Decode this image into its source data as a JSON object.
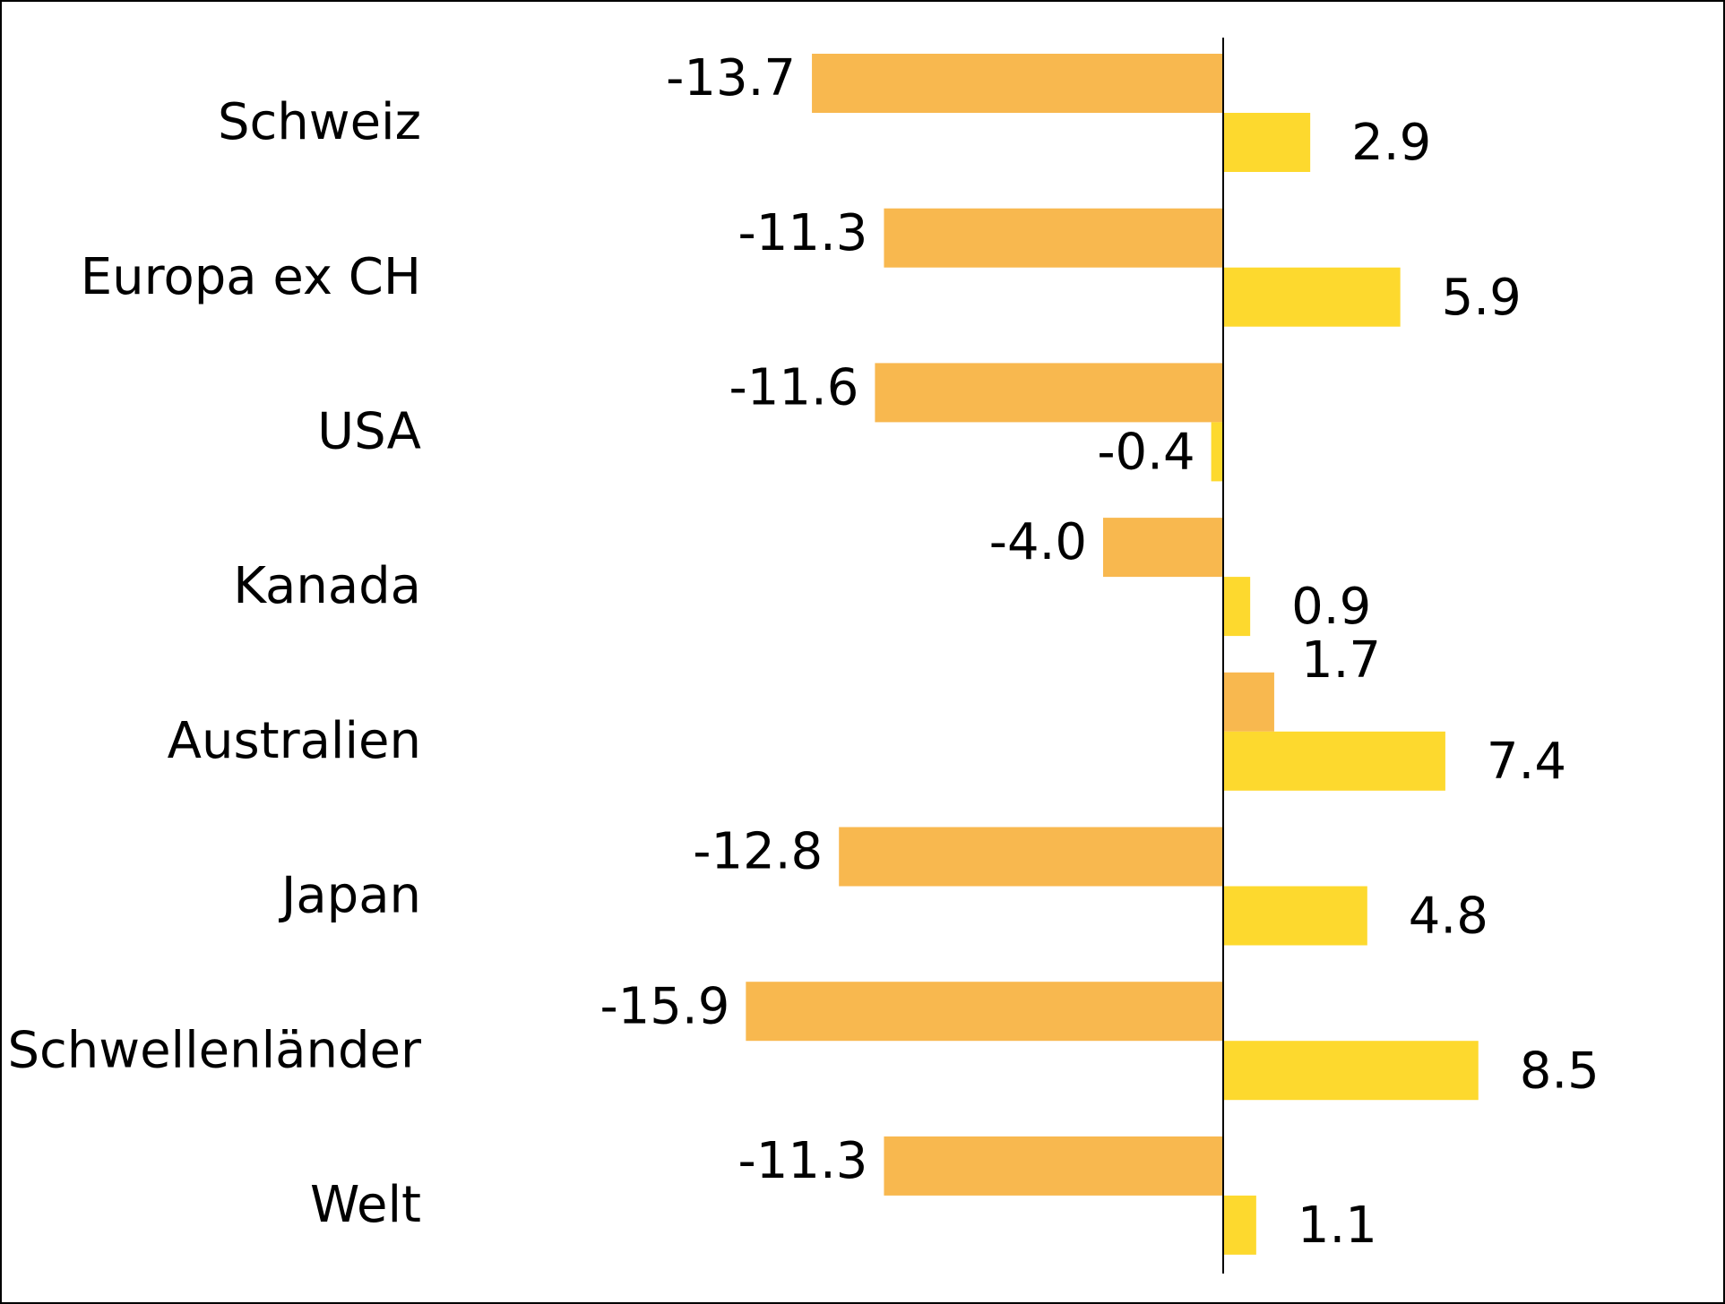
{
  "chart_data": {
    "type": "bar",
    "orientation": "horizontal",
    "categories": [
      "Schweiz",
      "Europa ex CH",
      "USA",
      "Kanada",
      "Australien",
      "Japan",
      "Schwellenländer",
      "Welt"
    ],
    "series": [
      {
        "color": "#F8B84F",
        "values": [
          -13.7,
          -11.3,
          -11.6,
          -4.0,
          1.7,
          -12.8,
          -15.9,
          -11.3
        ],
        "labels": [
          "-13.7",
          "-11.3",
          "-11.6",
          "-4.0",
          "1.7",
          "-12.8",
          "-15.9",
          "-11.3"
        ]
      },
      {
        "color": "#FDD92E",
        "values": [
          2.9,
          5.9,
          -0.4,
          0.9,
          7.4,
          4.8,
          8.5,
          1.1
        ],
        "labels": [
          "2.9",
          "5.9",
          "-0.4",
          "0.9",
          "7.4",
          "4.8",
          "8.5",
          "1.1"
        ]
      }
    ],
    "title": "",
    "xlabel": "",
    "ylabel": "",
    "xlim": [
      -17,
      17
    ],
    "grid": false,
    "legend": "none",
    "axis_color": "#000000"
  }
}
